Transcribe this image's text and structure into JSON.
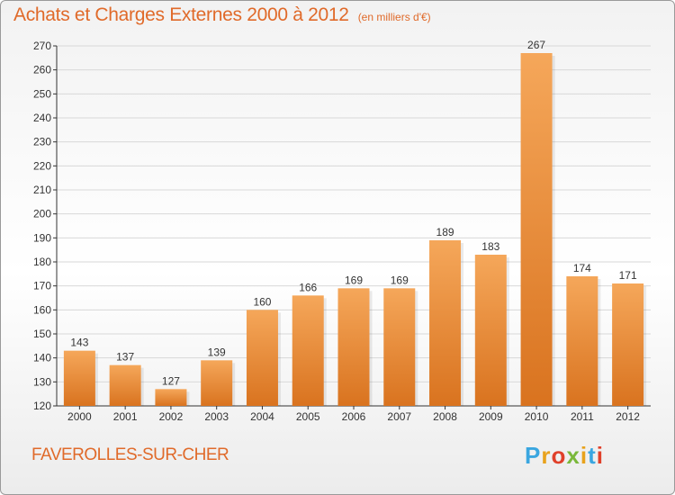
{
  "header": {
    "title": "Achats et Charges Externes 2000 à 2012",
    "unit": "(en milliers d'€)"
  },
  "footer": {
    "place": "FAVEROLLES-SUR-CHER",
    "brand": "Proxiti"
  },
  "colors": {
    "title": "#e06a2a",
    "bar_light": "#f5a75a",
    "bar_dark": "#d9731f",
    "axis": "#333333",
    "grid": "#d8d8d8"
  },
  "chart_data": {
    "type": "bar",
    "title": "Achats et Charges Externes 2000 à 2012",
    "subtitle": "(en milliers d'€)",
    "categories": [
      "2000",
      "2001",
      "2002",
      "2003",
      "2004",
      "2005",
      "2006",
      "2007",
      "2008",
      "2009",
      "2010",
      "2011",
      "2012"
    ],
    "values": [
      143,
      137,
      127,
      139,
      160,
      166,
      169,
      169,
      189,
      183,
      267,
      174,
      171
    ],
    "ylim": [
      120,
      270
    ],
    "yticks": [
      120,
      130,
      140,
      150,
      160,
      170,
      180,
      190,
      200,
      210,
      220,
      230,
      240,
      250,
      260,
      270
    ],
    "grid": true,
    "data_labels": true
  }
}
